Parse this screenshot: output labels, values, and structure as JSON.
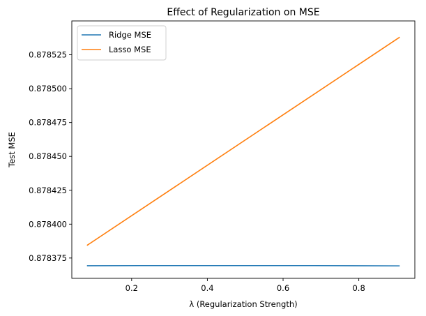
{
  "chart_data": {
    "type": "line",
    "title": "Effect of Regularization on MSE",
    "xlabel": "λ (Regularization Strength)",
    "ylabel": "Test MSE",
    "xlim": [
      0.042,
      0.948
    ],
    "ylim": [
      0.87836,
      0.87855
    ],
    "x_ticks": [
      0.2,
      0.4,
      0.6,
      0.8
    ],
    "x_tick_labels": [
      "0.2",
      "0.4",
      "0.6",
      "0.8"
    ],
    "y_ticks": [
      0.878375,
      0.8784,
      0.878425,
      0.87845,
      0.878475,
      0.8785,
      0.878525
    ],
    "y_tick_labels": [
      "0.878375",
      "0.878400",
      "0.878425",
      "0.878450",
      "0.878475",
      "0.878500",
      "0.878525"
    ],
    "grid": false,
    "legend": "top-left",
    "series": [
      {
        "name": "Ridge MSE",
        "color": "#1f77b4",
        "x": [
          0.082,
          0.23,
          0.45,
          0.68,
          0.908
        ],
        "y": [
          0.8783693,
          0.8783694,
          0.8783694,
          0.8783694,
          0.8783692
        ]
      },
      {
        "name": "Lasso MSE",
        "color": "#ff7f0e",
        "x": [
          0.082,
          0.908
        ],
        "y": [
          0.8783843,
          0.878538
        ]
      }
    ]
  }
}
